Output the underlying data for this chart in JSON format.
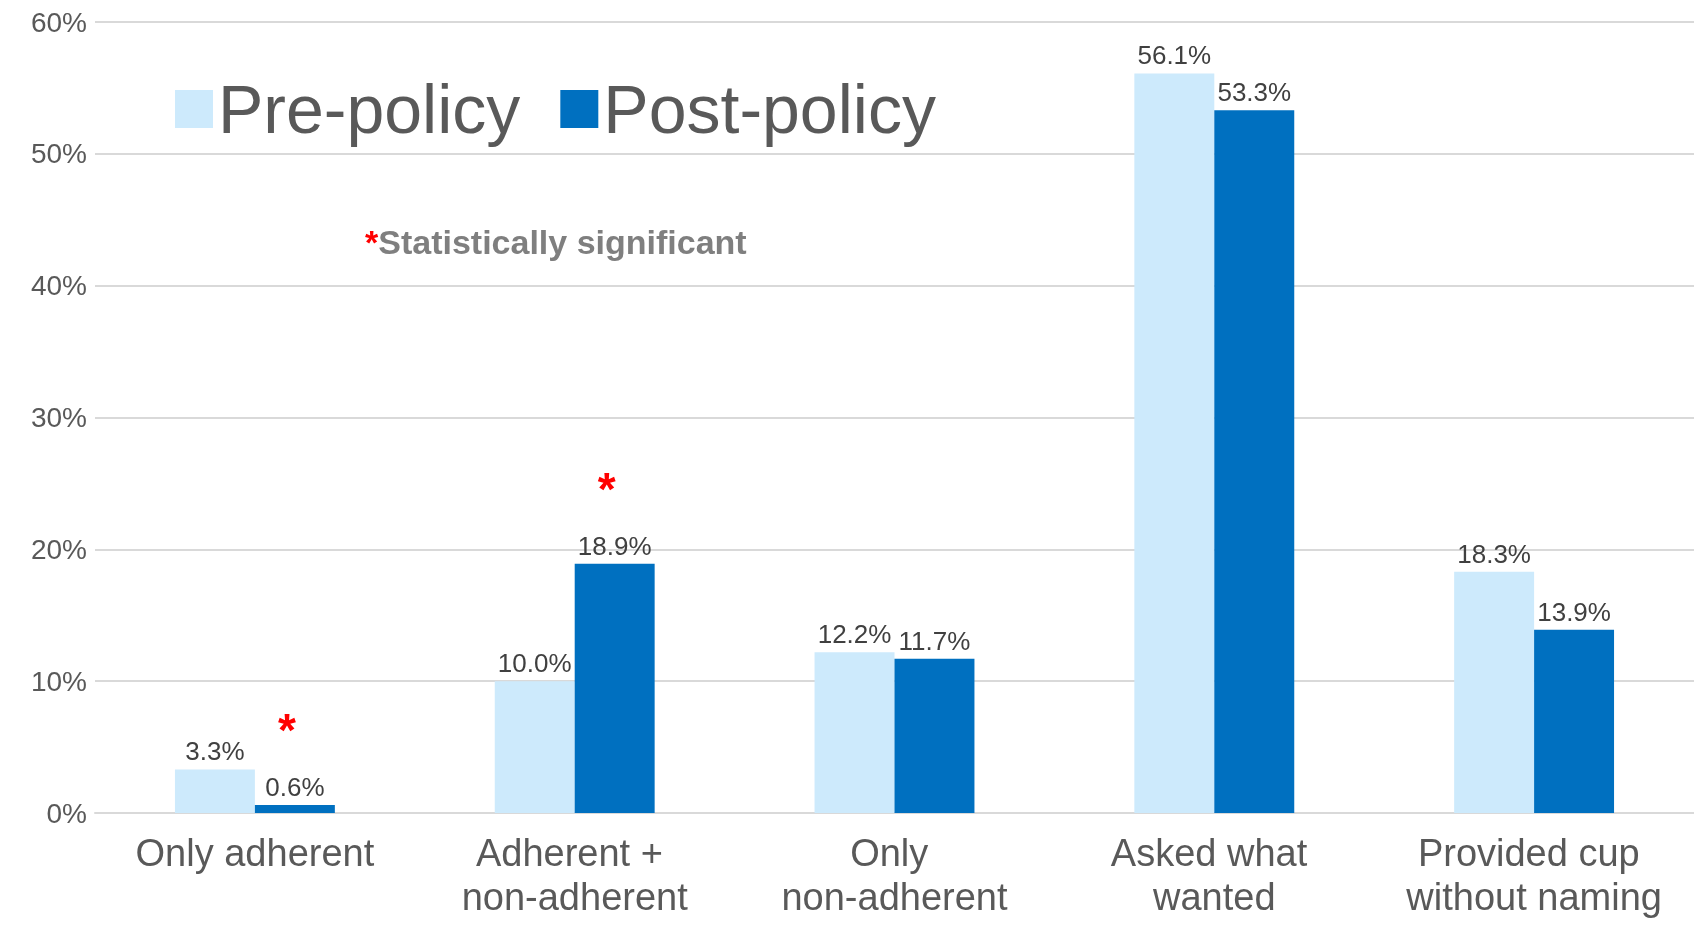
{
  "chart_data": {
    "type": "bar",
    "categories": [
      "Only adherent",
      "Adherent + non-adherent",
      "Only non-adherent",
      "Asked what wanted",
      "Provided cup without naming"
    ],
    "series": [
      {
        "name": "Pre-policy",
        "color": "#cdeafc",
        "values": [
          3.3,
          10.0,
          12.2,
          56.1,
          18.3
        ],
        "value_labels": [
          "3.3%",
          "10.0%",
          "12.2%",
          "56.1%",
          "18.3%"
        ]
      },
      {
        "name": "Post-policy",
        "color": "#0070c0",
        "values": [
          0.6,
          18.9,
          11.7,
          53.3,
          13.9
        ],
        "value_labels": [
          "0.6%",
          "18.9%",
          "11.7%",
          "53.3%",
          "13.9%"
        ]
      }
    ],
    "ylim": [
      0,
      60
    ],
    "yticks": [
      {
        "value": 0,
        "label": "0%"
      },
      {
        "value": 10,
        "label": "10%"
      },
      {
        "value": 20,
        "label": "20%"
      },
      {
        "value": 30,
        "label": "30%"
      },
      {
        "value": 40,
        "label": "40%"
      },
      {
        "value": 50,
        "label": "50%"
      },
      {
        "value": 60,
        "label": "60%"
      }
    ],
    "grid": "y",
    "legend": "top left",
    "annotations": [
      "*Statistically significant",
      {
        "text": "*",
        "x": "Only adherent",
        "y": 0.6
      },
      {
        "text": "*",
        "x": "Adherent + non-adherent",
        "y": 18.9
      }
    ]
  }
}
